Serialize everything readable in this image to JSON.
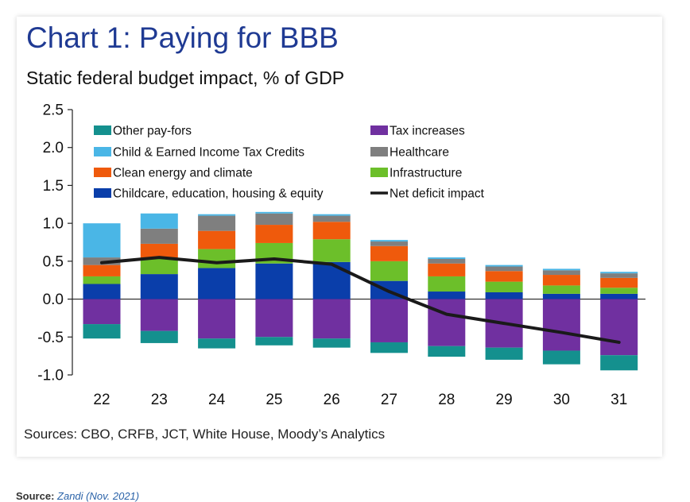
{
  "chart_data": {
    "type": "bar",
    "stacked": true,
    "title": "Chart 1: Paying for BBB",
    "subtitle": "Static federal budget impact, % of GDP",
    "categories": [
      "22",
      "23",
      "24",
      "25",
      "26",
      "27",
      "28",
      "29",
      "30",
      "31"
    ],
    "ylim": [
      -1.0,
      2.5
    ],
    "yticks": [
      "2.5",
      "2.0",
      "1.5",
      "1.0",
      "0.5",
      "0.0",
      "-0.5",
      "-1.0"
    ],
    "grid": false,
    "legend_position": "top",
    "series": [
      {
        "name": "Childcare, education, housing & equity",
        "color": "#0a3eaa",
        "values": [
          0.2,
          0.33,
          0.41,
          0.47,
          0.49,
          0.24,
          0.1,
          0.09,
          0.07,
          0.07
        ]
      },
      {
        "name": "Infrastructure",
        "color": "#6cbf2a",
        "values": [
          0.1,
          0.2,
          0.25,
          0.27,
          0.3,
          0.26,
          0.2,
          0.14,
          0.11,
          0.08
        ]
      },
      {
        "name": "Clean energy and climate",
        "color": "#ef5a0c",
        "values": [
          0.15,
          0.2,
          0.24,
          0.24,
          0.23,
          0.2,
          0.17,
          0.14,
          0.14,
          0.13
        ]
      },
      {
        "name": "Healthcare",
        "color": "#7f7f7f",
        "values": [
          0.1,
          0.2,
          0.2,
          0.15,
          0.08,
          0.06,
          0.06,
          0.06,
          0.06,
          0.06
        ]
      },
      {
        "name": "Child & Earned Income Tax Credits",
        "color": "#4ab6e6",
        "values": [
          0.45,
          0.2,
          0.02,
          0.02,
          0.02,
          0.02,
          0.02,
          0.02,
          0.02,
          0.02
        ]
      },
      {
        "name": "Tax increases",
        "color": "#7030a0",
        "values": [
          -0.33,
          -0.42,
          -0.52,
          -0.5,
          -0.52,
          -0.57,
          -0.62,
          -0.64,
          -0.68,
          -0.74
        ]
      },
      {
        "name": "Other pay-fors",
        "color": "#14908e",
        "values": [
          -0.19,
          -0.16,
          -0.13,
          -0.11,
          -0.12,
          -0.14,
          -0.14,
          -0.16,
          -0.18,
          -0.2
        ]
      }
    ],
    "line": {
      "name": "Net deficit impact",
      "color": "#1a1a1a",
      "values": [
        0.48,
        0.55,
        0.48,
        0.53,
        0.46,
        0.1,
        -0.2,
        -0.32,
        -0.44,
        -0.57
      ]
    },
    "legend": [
      "Other pay-fors",
      "Tax increases",
      "Child & Earned Income Tax Credits",
      "Healthcare",
      "Clean energy and climate",
      "Infrastructure",
      "Childcare, education, housing & equity",
      "Net deficit impact"
    ],
    "source": "Sources: CBO, CRFB, JCT, White House, Moody’s Analytics"
  },
  "footnote": {
    "lead": "Source:",
    "text": "Zandi (Nov. 2021)"
  }
}
